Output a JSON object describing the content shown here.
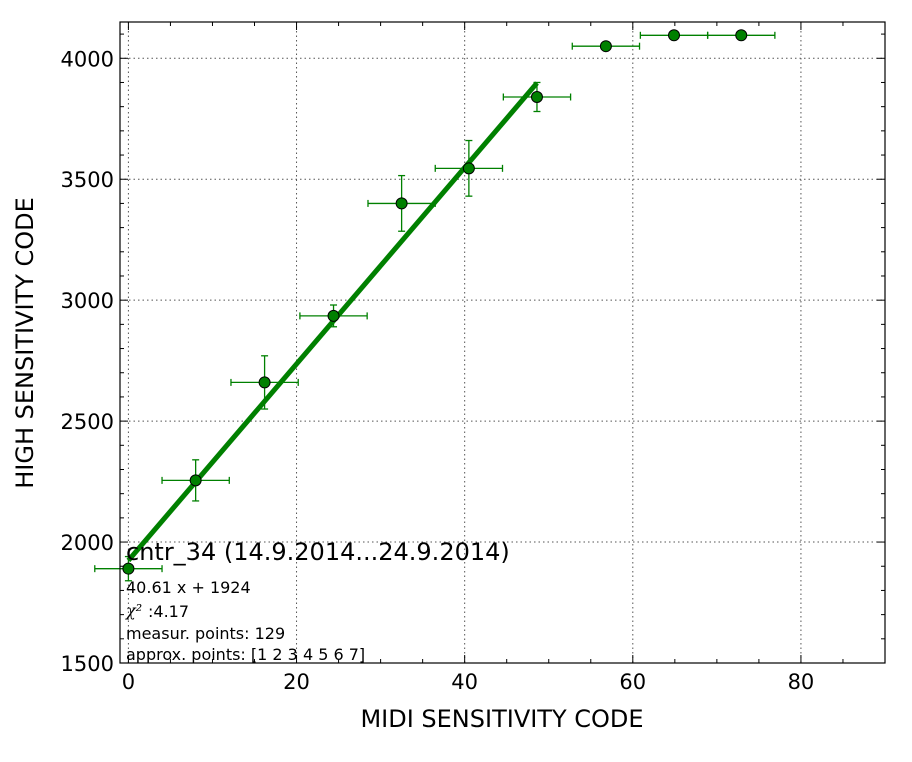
{
  "chart_data": {
    "type": "scatter",
    "xlabel": "MIDI SENSITIVITY CODE",
    "ylabel": "HIGH SENSITIVITY CODE",
    "xlim": [
      -1,
      90
    ],
    "ylim": [
      1500,
      4150
    ],
    "grid": true,
    "x_ticks": [
      "0",
      "20",
      "40",
      "60",
      "80"
    ],
    "y_ticks": [
      "1500",
      "2000",
      "2500",
      "3000",
      "3500",
      "4000"
    ],
    "colors": {
      "series": "#008000",
      "marker_edge": "#000000",
      "grid": "#555555"
    },
    "points": [
      {
        "x": 0,
        "y": 1890,
        "xerr": 4,
        "yerr": 50
      },
      {
        "x": 8,
        "y": 2255,
        "xerr": 4,
        "yerr": 85
      },
      {
        "x": 16.2,
        "y": 2660,
        "xerr": 4,
        "yerr": 110
      },
      {
        "x": 24.4,
        "y": 2935,
        "xerr": 4,
        "yerr": 45
      },
      {
        "x": 32.5,
        "y": 3400,
        "xerr": 4,
        "yerr": 115
      },
      {
        "x": 40.5,
        "y": 3545,
        "xerr": 4,
        "yerr": 115
      },
      {
        "x": 48.6,
        "y": 3840,
        "xerr": 4,
        "yerr": 60
      },
      {
        "x": 56.8,
        "y": 4050,
        "xerr": 4,
        "yerr": 0
      },
      {
        "x": 64.9,
        "y": 4095,
        "xerr": 4,
        "yerr": 0
      },
      {
        "x": 72.9,
        "y": 4095,
        "xerr": 4,
        "yerr": 0
      }
    ],
    "fit": {
      "slope": 40.61,
      "intercept": 1924,
      "x_range": [
        0,
        48.6
      ]
    },
    "annotations": {
      "title": "cntr_34 (14.9.2014...24.9.2014)",
      "equation": "40.61 x + 1924",
      "chi_symbol": "χ²",
      "chi_value": ":4.17",
      "measur_points": "measur. points: 129",
      "approx_points": "approx. points: [1 2 3 4 5 6 7]"
    }
  }
}
